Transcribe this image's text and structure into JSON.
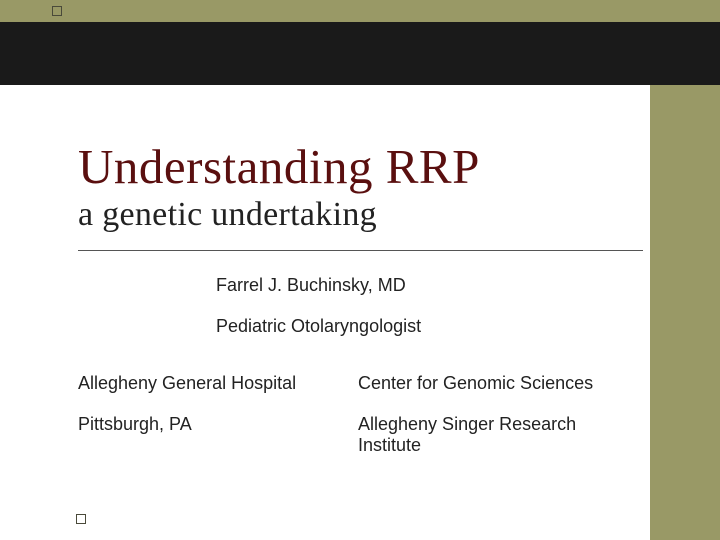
{
  "slide": {
    "title": "Understanding RRP",
    "subtitle": "a genetic undertaking",
    "author": "Farrel J. Buchinsky, MD",
    "role": "Pediatric Otolaryngologist",
    "affiliations": {
      "left": {
        "line1": "Allegheny General Hospital",
        "line2": "Pittsburgh, PA"
      },
      "right": {
        "line1": "Center for Genomic Sciences",
        "line2": "Allegheny Singer Research Institute"
      }
    }
  },
  "style": {
    "background_color": "#ffffff",
    "accent_band_color": "#999966",
    "dark_band_color": "#1a1a1a",
    "title_color": "#5a0f0f",
    "body_text_color": "#222222",
    "divider_color": "#555555",
    "title_fontsize": 49,
    "subtitle_fontsize": 34,
    "body_fontsize": 18,
    "title_font": "Georgia, Times New Roman, serif",
    "body_font": "Arial, Helvetica, sans-serif",
    "band_top_height": 22,
    "band_dark_height": 63,
    "band_right_width": 70,
    "marker_size": 10,
    "marker_border_color": "#4a4a3a"
  }
}
